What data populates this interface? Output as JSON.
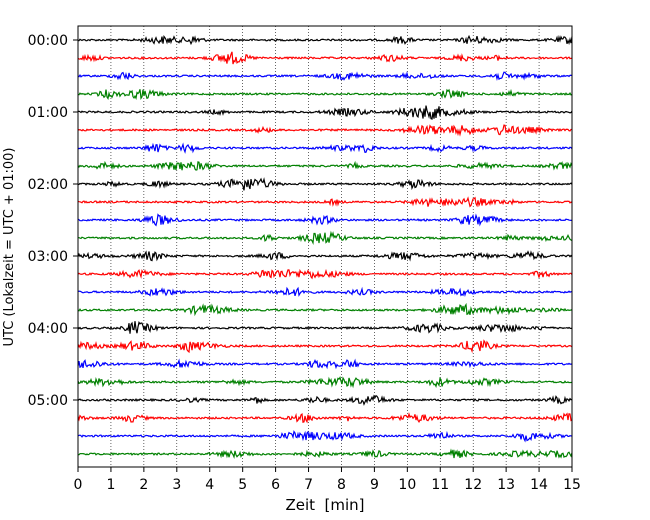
{
  "chart_data": {
    "type": "line",
    "title": "",
    "xlabel": "Zeit  [min]",
    "ylabel": "UTC (Lokalzeit = UTC + 01:00)",
    "xlim": [
      0,
      15
    ],
    "x_ticks": [
      "0",
      "1",
      "2",
      "3",
      "4",
      "5",
      "6",
      "7",
      "8",
      "9",
      "10",
      "11",
      "12",
      "13",
      "14",
      "15"
    ],
    "y_tick_labels": [
      "00:00",
      "01:00",
      "02:00",
      "03:00",
      "04:00",
      "05:00"
    ],
    "grid": "vertical dotted lines at each minute",
    "trace_interval_min": 15,
    "trace_count": 24,
    "color_cycle": [
      "#000000",
      "#ff0000",
      "#0000ff",
      "#008000"
    ],
    "traces_start_utc": "00:00",
    "traces_end_utc": "05:45"
  }
}
